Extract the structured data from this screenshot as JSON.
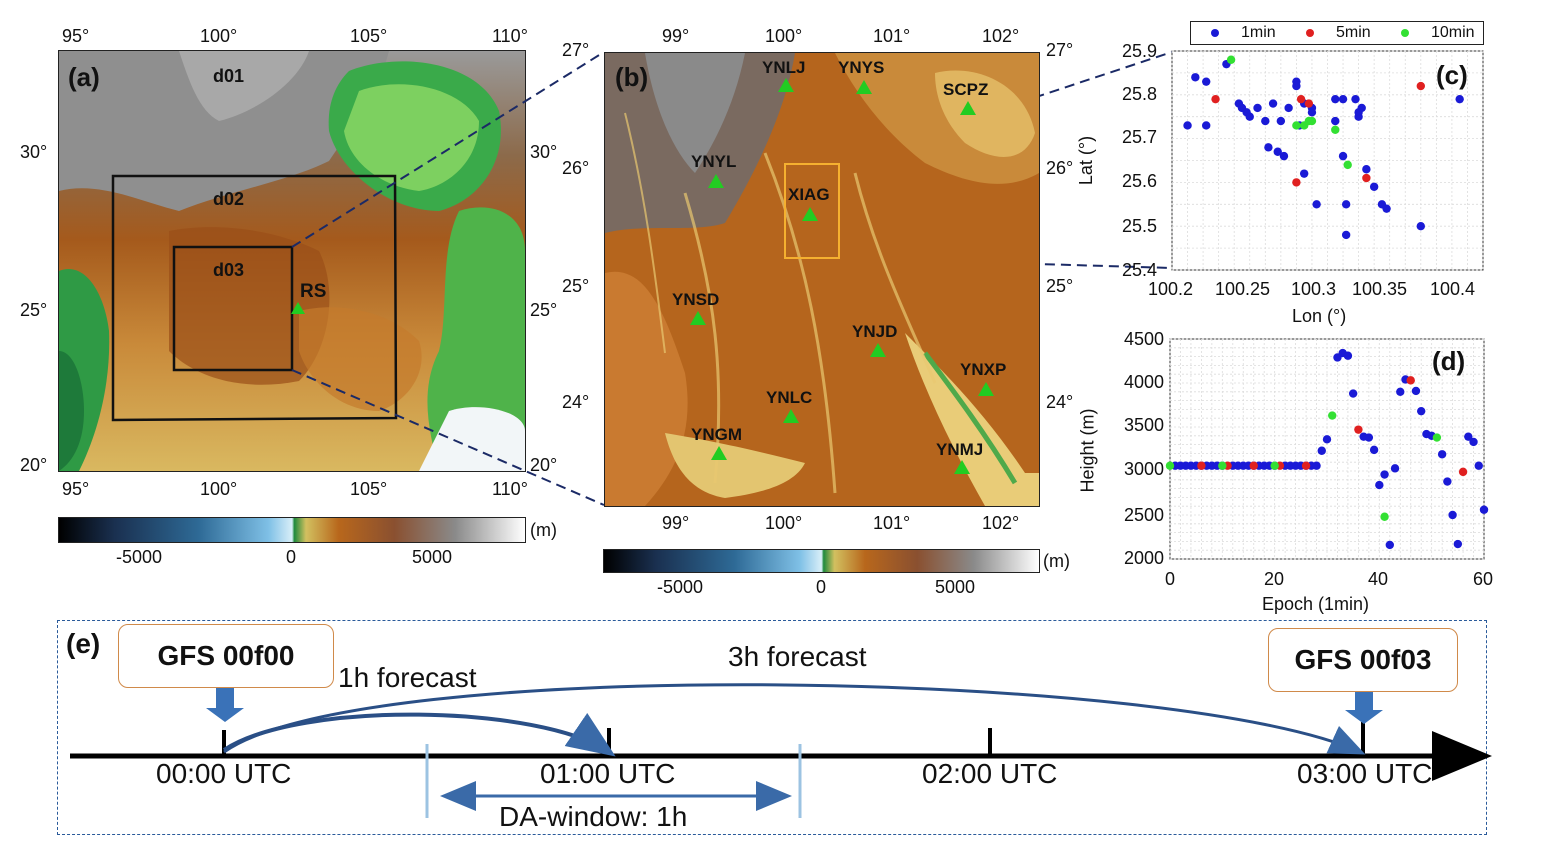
{
  "panel_a": {
    "label": "(a)",
    "lon_ticks": [
      "95°",
      "100°",
      "105°",
      "110°"
    ],
    "lat_ticks": [
      "30°",
      "25°",
      "20°"
    ],
    "domains": [
      "d01",
      "d02",
      "d03"
    ],
    "site": "RS",
    "colorbar": {
      "ticks": [
        "-5000",
        "0",
        "5000"
      ],
      "unit": "(m)"
    }
  },
  "panel_b": {
    "label": "(b)",
    "lon_ticks": [
      "99°",
      "100°",
      "101°",
      "102°"
    ],
    "lat_ticks": [
      "27°",
      "26°",
      "25°",
      "24°"
    ],
    "stations": [
      "YNLJ",
      "YNYS",
      "SCPZ",
      "YNYL",
      "XIAG",
      "YNSD",
      "YNJD",
      "YNXP",
      "YNLC",
      "YNGM",
      "YNMJ"
    ],
    "colorbar": {
      "ticks": [
        "-5000",
        "0",
        "5000"
      ],
      "unit": "(m)"
    }
  },
  "panel_c": {
    "label": "(c)",
    "xlabel": "Lon (°)",
    "ylabel": "Lat (°)",
    "xticks": [
      "100.2",
      "100.25",
      "100.3",
      "100.35",
      "100.4"
    ],
    "yticks": [
      "25.9",
      "25.8",
      "25.7",
      "25.6",
      "25.5",
      "25.4"
    ],
    "legend": [
      "1min",
      "5min",
      "10min"
    ],
    "colors": {
      "1min": "#1a1ad6",
      "5min": "#e02020",
      "10min": "#33e033"
    }
  },
  "panel_d": {
    "label": "(d)",
    "xlabel": "Epoch (1min)",
    "ylabel": "Height (m)",
    "xticks": [
      "0",
      "20",
      "40",
      "60"
    ],
    "yticks": [
      "4500",
      "4000",
      "3500",
      "3000",
      "2500",
      "2000"
    ]
  },
  "chart_data": [
    {
      "type": "scatter",
      "xlim": [
        100.2,
        100.4
      ],
      "ylim": [
        25.4,
        25.9
      ],
      "grid": true,
      "legend_placement": "top",
      "series": [
        {
          "name": "1min",
          "points": [
            [
              100.21,
              25.73
            ],
            [
              100.215,
              25.84
            ],
            [
              100.222,
              25.83
            ],
            [
              100.222,
              25.73
            ],
            [
              100.235,
              25.87
            ],
            [
              100.243,
              25.78
            ],
            [
              100.245,
              25.77
            ],
            [
              100.248,
              25.76
            ],
            [
              100.25,
              25.75
            ],
            [
              100.255,
              25.77
            ],
            [
              100.26,
              25.74
            ],
            [
              100.262,
              25.68
            ],
            [
              100.265,
              25.78
            ],
            [
              100.268,
              25.67
            ],
            [
              100.27,
              25.74
            ],
            [
              100.272,
              25.66
            ],
            [
              100.275,
              25.77
            ],
            [
              100.28,
              25.83
            ],
            [
              100.28,
              25.82
            ],
            [
              100.282,
              25.73
            ],
            [
              100.285,
              25.78
            ],
            [
              100.285,
              25.62
            ],
            [
              100.29,
              25.77
            ],
            [
              100.29,
              25.76
            ],
            [
              100.293,
              25.55
            ],
            [
              100.305,
              25.74
            ],
            [
              100.305,
              25.79
            ],
            [
              100.31,
              25.79
            ],
            [
              100.31,
              25.66
            ],
            [
              100.312,
              25.55
            ],
            [
              100.312,
              25.48
            ],
            [
              100.318,
              25.79
            ],
            [
              100.32,
              25.76
            ],
            [
              100.32,
              25.75
            ],
            [
              100.322,
              25.77
            ],
            [
              100.325,
              25.63
            ],
            [
              100.33,
              25.59
            ],
            [
              100.335,
              25.55
            ],
            [
              100.338,
              25.54
            ],
            [
              100.36,
              25.5
            ],
            [
              100.385,
              25.79
            ]
          ]
        },
        {
          "name": "5min",
          "points": [
            [
              100.228,
              25.79
            ],
            [
              100.283,
              25.79
            ],
            [
              100.288,
              25.78
            ],
            [
              100.28,
              25.6
            ],
            [
              100.325,
              25.61
            ],
            [
              100.36,
              25.82
            ]
          ]
        },
        {
          "name": "10min",
          "points": [
            [
              100.238,
              25.88
            ],
            [
              100.28,
              25.73
            ],
            [
              100.285,
              25.73
            ],
            [
              100.288,
              25.74
            ],
            [
              100.29,
              25.74
            ],
            [
              100.305,
              25.72
            ],
            [
              100.313,
              25.64
            ]
          ]
        }
      ]
    },
    {
      "type": "scatter",
      "xlim": [
        0,
        60
      ],
      "ylim": [
        2000,
        4500
      ],
      "grid": true,
      "series": [
        {
          "name": "1min",
          "points": [
            [
              1,
              3060
            ],
            [
              2,
              3060
            ],
            [
              3,
              3060
            ],
            [
              4,
              3060
            ],
            [
              5,
              3060
            ],
            [
              6,
              3060
            ],
            [
              7,
              3060
            ],
            [
              8,
              3060
            ],
            [
              9,
              3060
            ],
            [
              10,
              3060
            ],
            [
              12,
              3060
            ],
            [
              13,
              3060
            ],
            [
              14,
              3060
            ],
            [
              15,
              3060
            ],
            [
              16,
              3060
            ],
            [
              17,
              3060
            ],
            [
              18,
              3060
            ],
            [
              19,
              3060
            ],
            [
              20,
              3060
            ],
            [
              22,
              3060
            ],
            [
              23,
              3060
            ],
            [
              24,
              3060
            ],
            [
              25,
              3060
            ],
            [
              26,
              3060
            ],
            [
              27,
              3060
            ],
            [
              28,
              3060
            ],
            [
              29,
              3230
            ],
            [
              30,
              3360
            ],
            [
              32,
              4290
            ],
            [
              33,
              4340
            ],
            [
              34,
              4310
            ],
            [
              35,
              3880
            ],
            [
              37,
              3390
            ],
            [
              38,
              3380
            ],
            [
              39,
              3240
            ],
            [
              40,
              2840
            ],
            [
              41,
              2960
            ],
            [
              42,
              2160
            ],
            [
              43,
              3030
            ],
            [
              44,
              3900
            ],
            [
              45,
              4040
            ],
            [
              47,
              3910
            ],
            [
              48,
              3680
            ],
            [
              49,
              3420
            ],
            [
              50,
              3400
            ],
            [
              52,
              3190
            ],
            [
              53,
              2880
            ],
            [
              54,
              2500
            ],
            [
              55,
              2170
            ],
            [
              57,
              3390
            ],
            [
              58,
              3330
            ],
            [
              59,
              3060
            ],
            [
              60,
              2560
            ]
          ]
        },
        {
          "name": "5min",
          "points": [
            [
              6,
              3060
            ],
            [
              11,
              3060
            ],
            [
              16,
              3060
            ],
            [
              21,
              3060
            ],
            [
              26,
              3060
            ],
            [
              36,
              3470
            ],
            [
              46,
              4030
            ],
            [
              56,
              2990
            ]
          ]
        },
        {
          "name": "10min",
          "points": [
            [
              0,
              3060
            ],
            [
              10,
              3060
            ],
            [
              20,
              3060
            ],
            [
              31,
              3630
            ],
            [
              41,
              2480
            ],
            [
              51,
              3380
            ]
          ]
        }
      ]
    }
  ],
  "panel_e": {
    "label": "(e)",
    "gfs_start": "GFS 00f00",
    "gfs_end": "GFS 00f03",
    "forecast_1h": "1h forecast",
    "forecast_3h": "3h forecast",
    "times": [
      "00:00 UTC",
      "01:00 UTC",
      "02:00 UTC",
      "03:00 UTC"
    ],
    "da_window": "DA-window: 1h"
  }
}
